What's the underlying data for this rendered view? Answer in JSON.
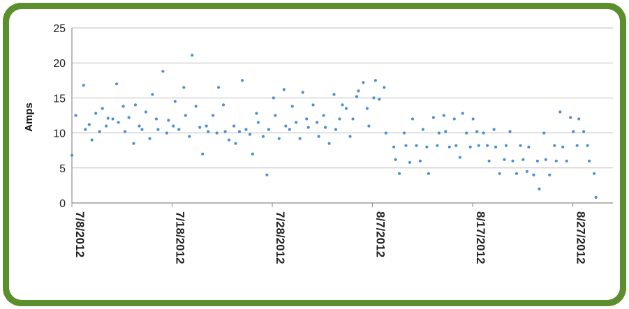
{
  "chart_data": {
    "type": "scatter",
    "title": "",
    "xlabel": "",
    "ylabel": "Amps",
    "xlim": [
      "2012-07-08",
      "2012-08-31"
    ],
    "ylim": [
      0,
      25
    ],
    "y_ticks": [
      "0",
      "5",
      "10",
      "15",
      "20",
      "25"
    ],
    "x_ticks": [
      {
        "date": "2012-07-08",
        "label": "7/8/2012"
      },
      {
        "date": "2012-07-18",
        "label": "7/18/2012"
      },
      {
        "date": "2012-07-28",
        "label": "7/28/2012"
      },
      {
        "date": "2012-08-07",
        "label": "8/7/2012"
      },
      {
        "date": "2012-08-17",
        "label": "8/17/2012"
      },
      {
        "date": "2012-08-27",
        "label": "8/27/2012"
      }
    ],
    "grid": "horizontal",
    "legend": "none",
    "marker_color": "#4a8fd4",
    "frame_color": "#5b8f2e",
    "series": [
      {
        "x": [
          "2012-07-08",
          "2012-07-08",
          "2012-07-09",
          "2012-07-09",
          "2012-07-09",
          "2012-07-10",
          "2012-07-10",
          "2012-07-10",
          "2012-07-11",
          "2012-07-11",
          "2012-07-11",
          "2012-07-12",
          "2012-07-12",
          "2012-07-12",
          "2012-07-13",
          "2012-07-13",
          "2012-07-13",
          "2012-07-14",
          "2012-07-14",
          "2012-07-14",
          "2012-07-15",
          "2012-07-15",
          "2012-07-15",
          "2012-07-16",
          "2012-07-16",
          "2012-07-16",
          "2012-07-17",
          "2012-07-17",
          "2012-07-17",
          "2012-07-18",
          "2012-07-18",
          "2012-07-18",
          "2012-07-19",
          "2012-07-19",
          "2012-07-19",
          "2012-07-20",
          "2012-07-20",
          "2012-07-20",
          "2012-07-21",
          "2012-07-21",
          "2012-07-21",
          "2012-07-22",
          "2012-07-22",
          "2012-07-22",
          "2012-07-23",
          "2012-07-23",
          "2012-07-23",
          "2012-07-24",
          "2012-07-24",
          "2012-07-24",
          "2012-07-25",
          "2012-07-25",
          "2012-07-25",
          "2012-07-26",
          "2012-07-26",
          "2012-07-26",
          "2012-07-27",
          "2012-07-27",
          "2012-07-27",
          "2012-07-28",
          "2012-07-28",
          "2012-07-28",
          "2012-07-29",
          "2012-07-29",
          "2012-07-29",
          "2012-07-30",
          "2012-07-30",
          "2012-07-30",
          "2012-07-31",
          "2012-07-31",
          "2012-07-31",
          "2012-08-01",
          "2012-08-01",
          "2012-08-01",
          "2012-08-02",
          "2012-08-02",
          "2012-08-02",
          "2012-08-03",
          "2012-08-03",
          "2012-08-03",
          "2012-08-04",
          "2012-08-04",
          "2012-08-04",
          "2012-08-05",
          "2012-08-05",
          "2012-08-05",
          "2012-08-06",
          "2012-08-06",
          "2012-08-06",
          "2012-08-07",
          "2012-08-07",
          "2012-08-07",
          "2012-08-08",
          "2012-08-08",
          "2012-08-09",
          "2012-08-09",
          "2012-08-09",
          "2012-08-10",
          "2012-08-10",
          "2012-08-10",
          "2012-08-11",
          "2012-08-11",
          "2012-08-11",
          "2012-08-12",
          "2012-08-12",
          "2012-08-12",
          "2012-08-13",
          "2012-08-13",
          "2012-08-13",
          "2012-08-14",
          "2012-08-14",
          "2012-08-14",
          "2012-08-15",
          "2012-08-15",
          "2012-08-15",
          "2012-08-16",
          "2012-08-16",
          "2012-08-16",
          "2012-08-17",
          "2012-08-17",
          "2012-08-17",
          "2012-08-18",
          "2012-08-18",
          "2012-08-18",
          "2012-08-19",
          "2012-08-19",
          "2012-08-19",
          "2012-08-20",
          "2012-08-20",
          "2012-08-20",
          "2012-08-21",
          "2012-08-21",
          "2012-08-21",
          "2012-08-22",
          "2012-08-22",
          "2012-08-22",
          "2012-08-23",
          "2012-08-23",
          "2012-08-23",
          "2012-08-24",
          "2012-08-24",
          "2012-08-24",
          "2012-08-25",
          "2012-08-25",
          "2012-08-25",
          "2012-08-26",
          "2012-08-26",
          "2012-08-26",
          "2012-08-27",
          "2012-08-27",
          "2012-08-27",
          "2012-08-28",
          "2012-08-28",
          "2012-08-28",
          "2012-08-29",
          "2012-08-29"
        ],
        "y": [
          6.8,
          12.5,
          16.8,
          10.5,
          11.2,
          9.0,
          12.8,
          10.2,
          13.5,
          11.0,
          12.1,
          12.0,
          17.0,
          11.5,
          13.8,
          10.2,
          12.2,
          8.5,
          14.0,
          11.0,
          10.5,
          13.0,
          9.2,
          15.5,
          12.0,
          10.5,
          18.8,
          10.0,
          11.8,
          11.0,
          14.5,
          10.5,
          16.5,
          12.5,
          9.5,
          21.1,
          13.8,
          10.8,
          7.0,
          11.0,
          10.2,
          12.5,
          10.0,
          16.5,
          14.0,
          10.2,
          9.0,
          11.0,
          8.5,
          10.2,
          17.5,
          10.5,
          9.8,
          7.0,
          12.8,
          11.5,
          9.5,
          4.0,
          10.5,
          15.0,
          12.5,
          9.2,
          16.2,
          11.0,
          10.5,
          13.8,
          11.5,
          9.2,
          15.8,
          12.0,
          10.8,
          14.0,
          11.5,
          9.5,
          12.5,
          10.8,
          8.5,
          15.5,
          10.5,
          12.0,
          14.0,
          13.5,
          9.5,
          12.0,
          15.2,
          16.0,
          17.2,
          13.5,
          11.0,
          15.0,
          17.5,
          14.8,
          16.5,
          10.0,
          8.0,
          6.2,
          4.2,
          10.0,
          8.2,
          5.8,
          12.0,
          8.2,
          6.0,
          10.5,
          8.0,
          4.2,
          12.2,
          8.2,
          10.0,
          12.5,
          10.2,
          8.0,
          12.0,
          8.2,
          6.5,
          12.8,
          10.0,
          8.0,
          12.0,
          10.2,
          8.2,
          10.0,
          8.2,
          6.0,
          10.5,
          8.0,
          4.2,
          6.2,
          8.2,
          10.2,
          6.0,
          4.2,
          8.2,
          6.2,
          4.5,
          8.0,
          4.0,
          6.0,
          2.0,
          10.0,
          6.2,
          4.0,
          8.2,
          6.0,
          13.0,
          8.0,
          6.0,
          12.2,
          10.2,
          8.2,
          12.0,
          10.2,
          8.2,
          6.0,
          4.2,
          0.8
        ]
      }
    ]
  }
}
